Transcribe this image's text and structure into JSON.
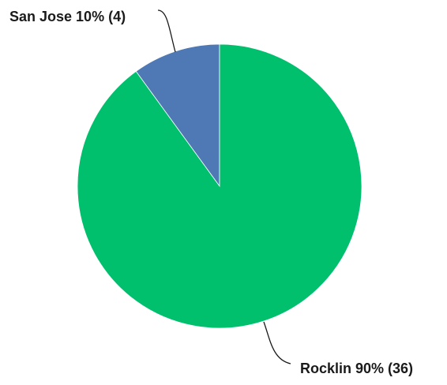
{
  "chart_data": {
    "type": "pie",
    "title": "",
    "slices": [
      {
        "label": "San Jose",
        "percent": 10,
        "count": 4,
        "color": "#4e79b4",
        "display_label": "San Jose 10% (4)"
      },
      {
        "label": "Rocklin",
        "percent": 90,
        "count": 36,
        "color": "#00c06e",
        "display_label": "Rocklin 90% (36)"
      }
    ],
    "start_angle_deg": -90,
    "direction": "counterclockwise",
    "legend": "none",
    "labels": "outside-with-leader-lines"
  }
}
